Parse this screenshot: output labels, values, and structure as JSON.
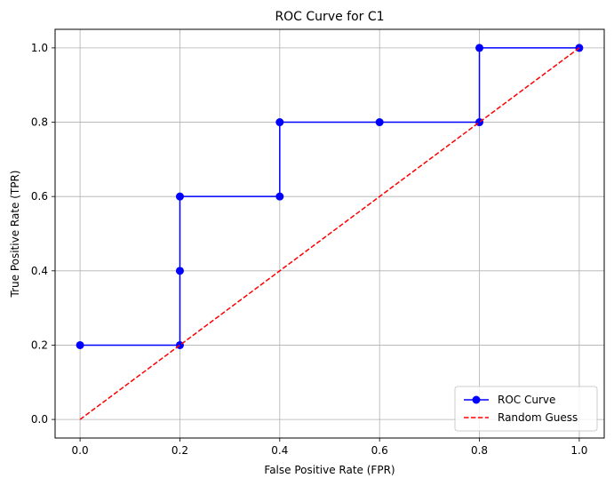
{
  "chart_data": {
    "type": "line",
    "title": "ROC Curve for C1",
    "xlabel": "False Positive Rate (FPR)",
    "ylabel": "True Positive Rate (TPR)",
    "xlim": [
      -0.05,
      1.05
    ],
    "ylim": [
      -0.05,
      1.05
    ],
    "xticks": [
      0.0,
      0.2,
      0.4,
      0.6,
      0.8,
      1.0
    ],
    "yticks": [
      0.0,
      0.2,
      0.4,
      0.6,
      0.8,
      1.0
    ],
    "xtick_labels": [
      "0.0",
      "0.2",
      "0.4",
      "0.6",
      "0.8",
      "1.0"
    ],
    "ytick_labels": [
      "0.0",
      "0.2",
      "0.4",
      "0.6",
      "0.8",
      "1.0"
    ],
    "grid": true,
    "legend_position": "lower-right",
    "series": [
      {
        "name": "ROC Curve",
        "color": "#0000ff",
        "style": "solid",
        "marker": "circle",
        "x": [
          0.0,
          0.2,
          0.2,
          0.2,
          0.4,
          0.4,
          0.6,
          0.8,
          0.8,
          1.0
        ],
        "y": [
          0.2,
          0.2,
          0.4,
          0.6,
          0.6,
          0.8,
          0.8,
          0.8,
          1.0,
          1.0
        ]
      },
      {
        "name": "Random Guess",
        "color": "#ff0000",
        "style": "dashed",
        "marker": "none",
        "x": [
          0.0,
          1.0
        ],
        "y": [
          0.0,
          1.0
        ]
      }
    ]
  }
}
